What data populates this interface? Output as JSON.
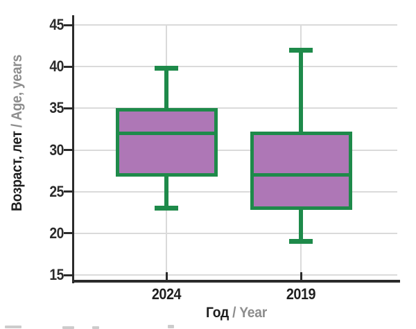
{
  "chart_data": {
    "type": "box",
    "title": "",
    "xlabel": {
      "primary": "Год",
      "separator": " / ",
      "secondary": "Year"
    },
    "ylabel": {
      "primary": "Возраст, лет",
      "separator": " / ",
      "secondary": "Age, years"
    },
    "categories": [
      "2024",
      "2019"
    ],
    "series": [
      {
        "name": "2024",
        "min": 23,
        "q1": 27,
        "median": 32,
        "q3": 34.8,
        "max": 39.8
      },
      {
        "name": "2019",
        "min": 19,
        "q1": 23,
        "median": 27,
        "q3": 32,
        "max": 42
      }
    ],
    "yticks": [
      15,
      20,
      25,
      30,
      35,
      40,
      45
    ],
    "ylim": [
      15,
      45
    ],
    "grid": "horizontal-and-category-vertical",
    "legend": "none",
    "colors": {
      "box_fill": "#ae77b6",
      "box_border": "#1e8a4a",
      "grid": "#dadada",
      "axis": "#2b2b2b",
      "label_primary": "#1f1f1f",
      "label_secondary": "#8d8d8d"
    }
  }
}
